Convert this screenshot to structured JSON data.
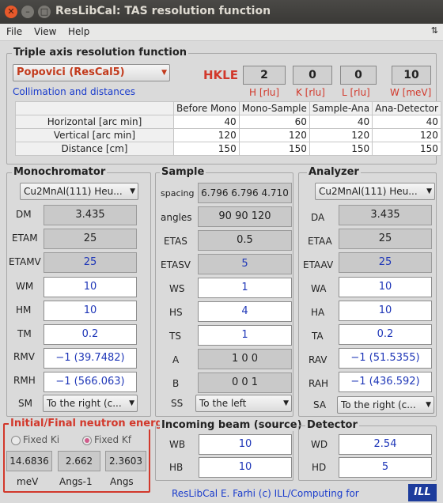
{
  "window": {
    "title": "ResLibCal: TAS resolution function"
  },
  "menu": {
    "file": "File",
    "view": "View",
    "help": "Help"
  },
  "triple": {
    "title": "Triple axis resolution function",
    "method": "Popovici (ResCal5)",
    "hkle_label": "HKLE",
    "h": "2",
    "k": "0",
    "l": "0",
    "w": "10",
    "h_unit": "H [rlu]",
    "k_unit": "K [rlu]",
    "l_unit": "L [rlu]",
    "w_unit": "W [meV]",
    "collimation_link": "Collimation and distances"
  },
  "collimation": {
    "columns": [
      "Before Mono",
      "Mono-Sample",
      "Sample-Ana",
      "Ana-Detector"
    ],
    "rows": [
      {
        "label": "Horizontal [arc min]",
        "values": [
          "40",
          "60",
          "40",
          "40"
        ]
      },
      {
        "label": "Vertical [arc min]",
        "values": [
          "120",
          "120",
          "120",
          "120"
        ]
      },
      {
        "label": "Distance [cm]",
        "values": [
          "150",
          "150",
          "150",
          "150"
        ]
      }
    ]
  },
  "mono": {
    "title": "Monochromator",
    "crystal": "Cu2MnAl(111) Heu...",
    "dm_label": "DM",
    "dm": "3.435",
    "etam_label": "ETAM",
    "etam": "25",
    "etamv_label": "ETAMV",
    "etamv": "25",
    "wm_label": "WM",
    "wm": "10",
    "hm_label": "HM",
    "hm": "10",
    "tm_label": "TM",
    "tm": "0.2",
    "rmv_label": "RMV",
    "rmv": "−1 (39.7482)",
    "rmh_label": "RMH",
    "rmh": "−1 (566.063)",
    "sm_label": "SM",
    "sm": "To the right (c..."
  },
  "sample": {
    "title": "Sample",
    "spacing_label": "spacing",
    "spacing": "6.796 6.796 4.710",
    "angles_label": "angles",
    "angles": "90 90 120",
    "etas_label": "ETAS",
    "etas": "0.5",
    "etasv_label": "ETASV",
    "etasv": "5",
    "ws_label": "WS",
    "ws": "1",
    "hs_label": "HS",
    "hs": "4",
    "ts_label": "TS",
    "ts": "1",
    "a_label": "A",
    "a": "1 0 0",
    "b_label": "B",
    "b": "0 0 1",
    "ss_label": "SS",
    "ss": "To the left"
  },
  "analyzer": {
    "title": "Analyzer",
    "crystal": "Cu2MnAl(111) Heu...",
    "da_label": "DA",
    "da": "3.435",
    "etaa_label": "ETAA",
    "etaa": "25",
    "etaav_label": "ETAAV",
    "etaav": "25",
    "wa_label": "WA",
    "wa": "10",
    "ha_label": "HA",
    "ha": "10",
    "ta_label": "TA",
    "ta": "0.2",
    "rav_label": "RAV",
    "rav": "−1 (51.5355)",
    "rah_label": "RAH",
    "rah": "−1 (436.592)",
    "sa_label": "SA",
    "sa": "To the right (c..."
  },
  "energy": {
    "title": "Initial/Final neutron energy",
    "fixed_ki": "Fixed Ki",
    "fixed_kf": "Fixed Kf",
    "selected": "Fixed Kf",
    "e_value": "14.6836",
    "k_value": "2.662",
    "l_value": "2.3603",
    "e_unit": "meV",
    "k_unit": "Angs-1",
    "l_unit": "Angs"
  },
  "beam": {
    "title": "Incoming beam (source)",
    "wb_label": "WB",
    "wb": "10",
    "hb_label": "HB",
    "hb": "10"
  },
  "detector": {
    "title": "Detector",
    "wd_label": "WD",
    "wd": "2.54",
    "hd_label": "HD",
    "hd": "5"
  },
  "footer": {
    "credit": "ResLibCal E. Farhi (c) ILL/Computing for",
    "logo": "ILL"
  },
  "colors": {
    "accent_red": "#d2382b",
    "edit_blue": "#1f37b8",
    "link_blue": "#1a3ccc"
  }
}
